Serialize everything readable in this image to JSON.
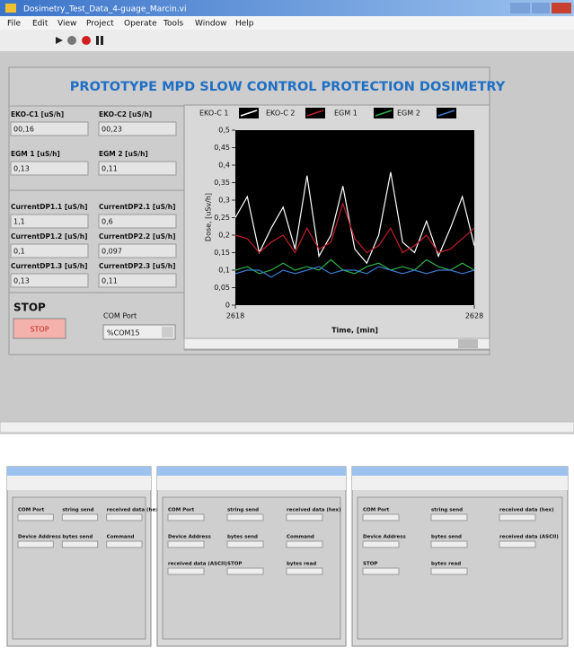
{
  "window": {
    "title": "Dosimetry_Test_Data_4-guage_Marcin.vi",
    "menu": [
      "File",
      "Edit",
      "View",
      "Project",
      "Operate",
      "Tools",
      "Window",
      "Help"
    ]
  },
  "panel": {
    "heading": "PROTOTYPE MPD SLOW CONTROL PROTECTION DOSIMETRY",
    "indicators": [
      {
        "label": "EKO-C1 [uS/h]",
        "value": "00,16"
      },
      {
        "label": "EKO-C2 [uS/h]",
        "value": "00,23"
      },
      {
        "label": "EGM 1 [uS/h]",
        "value": "0,13"
      },
      {
        "label": "EGM 2 [uS/h]",
        "value": "0,11"
      },
      {
        "label": "CurrentDP1.1 [uS/h]",
        "value": "1,1"
      },
      {
        "label": "CurrentDP2.1 [uS/h]",
        "value": "0,6"
      },
      {
        "label": "CurrentDP1.2 [uS/h]",
        "value": "0,1"
      },
      {
        "label": "CurrentDP2.2 [uS/h]",
        "value": "0,097"
      },
      {
        "label": "CurrentDP1.3 [uS/h]",
        "value": "0,13"
      },
      {
        "label": "CurrentDP2.3 [uS/h]",
        "value": "0,11"
      }
    ],
    "stop_label": "STOP",
    "stop_button": "STOP",
    "com_port_label": "COM Port",
    "com_port_value": "%COM15"
  },
  "chart_data": {
    "type": "line",
    "xlabel": "Time, [min]",
    "ylabel": "Dose, [uSv/h]",
    "x": [
      2618,
      2618.5,
      2619,
      2619.5,
      2620,
      2620.5,
      2621,
      2621.5,
      2622,
      2622.5,
      2623,
      2623.5,
      2624,
      2624.5,
      2625,
      2625.5,
      2626,
      2626.5,
      2627,
      2627.5,
      2628
    ],
    "xlim": [
      2618,
      2628
    ],
    "xticks": [
      2618,
      2628
    ],
    "ylim": [
      0,
      0.5
    ],
    "yticks": [
      0,
      {
        "value": 0.05,
        "label": "0,05"
      },
      {
        "value": 0.1,
        "label": "0,1"
      },
      {
        "value": 0.15,
        "label": "0,15"
      },
      {
        "value": 0.2,
        "label": "0,2"
      },
      {
        "value": 0.25,
        "label": "0,25"
      },
      {
        "value": 0.3,
        "label": "0,3"
      },
      {
        "value": 0.35,
        "label": "0,35"
      },
      {
        "value": 0.4,
        "label": "0,4"
      },
      {
        "value": 0.45,
        "label": "0,45"
      },
      {
        "value": 0.5,
        "label": "0,5"
      }
    ],
    "series": [
      {
        "name": "EKO-C 1",
        "color": "#ffffff",
        "values": [
          0.25,
          0.31,
          0.15,
          0.22,
          0.28,
          0.16,
          0.37,
          0.14,
          0.2,
          0.34,
          0.16,
          0.12,
          0.2,
          0.38,
          0.18,
          0.15,
          0.24,
          0.14,
          0.22,
          0.31,
          0.17
        ]
      },
      {
        "name": "EKO-C 2",
        "color": "#c0202a",
        "values": [
          0.2,
          0.19,
          0.15,
          0.18,
          0.2,
          0.15,
          0.22,
          0.16,
          0.18,
          0.29,
          0.19,
          0.15,
          0.17,
          0.22,
          0.15,
          0.17,
          0.2,
          0.15,
          0.16,
          0.19,
          0.22
        ]
      },
      {
        "name": "EGM 1",
        "color": "#2fb34a",
        "values": [
          0.1,
          0.11,
          0.09,
          0.1,
          0.12,
          0.1,
          0.11,
          0.1,
          0.13,
          0.1,
          0.09,
          0.11,
          0.12,
          0.1,
          0.11,
          0.1,
          0.13,
          0.11,
          0.1,
          0.12,
          0.1
        ]
      },
      {
        "name": "EGM 2",
        "color": "#3a7ad0",
        "values": [
          0.09,
          0.1,
          0.1,
          0.08,
          0.1,
          0.09,
          0.1,
          0.11,
          0.09,
          0.1,
          0.1,
          0.09,
          0.11,
          0.1,
          0.09,
          0.1,
          0.09,
          0.1,
          0.1,
          0.09,
          0.1
        ]
      }
    ]
  },
  "thumbnails": [
    {
      "labels": [
        "COM Port",
        "string send",
        "received data (hex)",
        "Device Address",
        "bytes send",
        "Command"
      ]
    },
    {
      "labels": [
        "COM Port",
        "string send",
        "received data (hex)",
        "Device Address",
        "bytes send",
        "Command",
        "received data (ASCII)",
        "STOP",
        "bytes read"
      ]
    },
    {
      "labels": [
        "COM Port",
        "string send",
        "received data (hex)",
        "Device Address",
        "bytes send",
        "received data (ASCII)",
        "STOP",
        "bytes read"
      ]
    }
  ]
}
